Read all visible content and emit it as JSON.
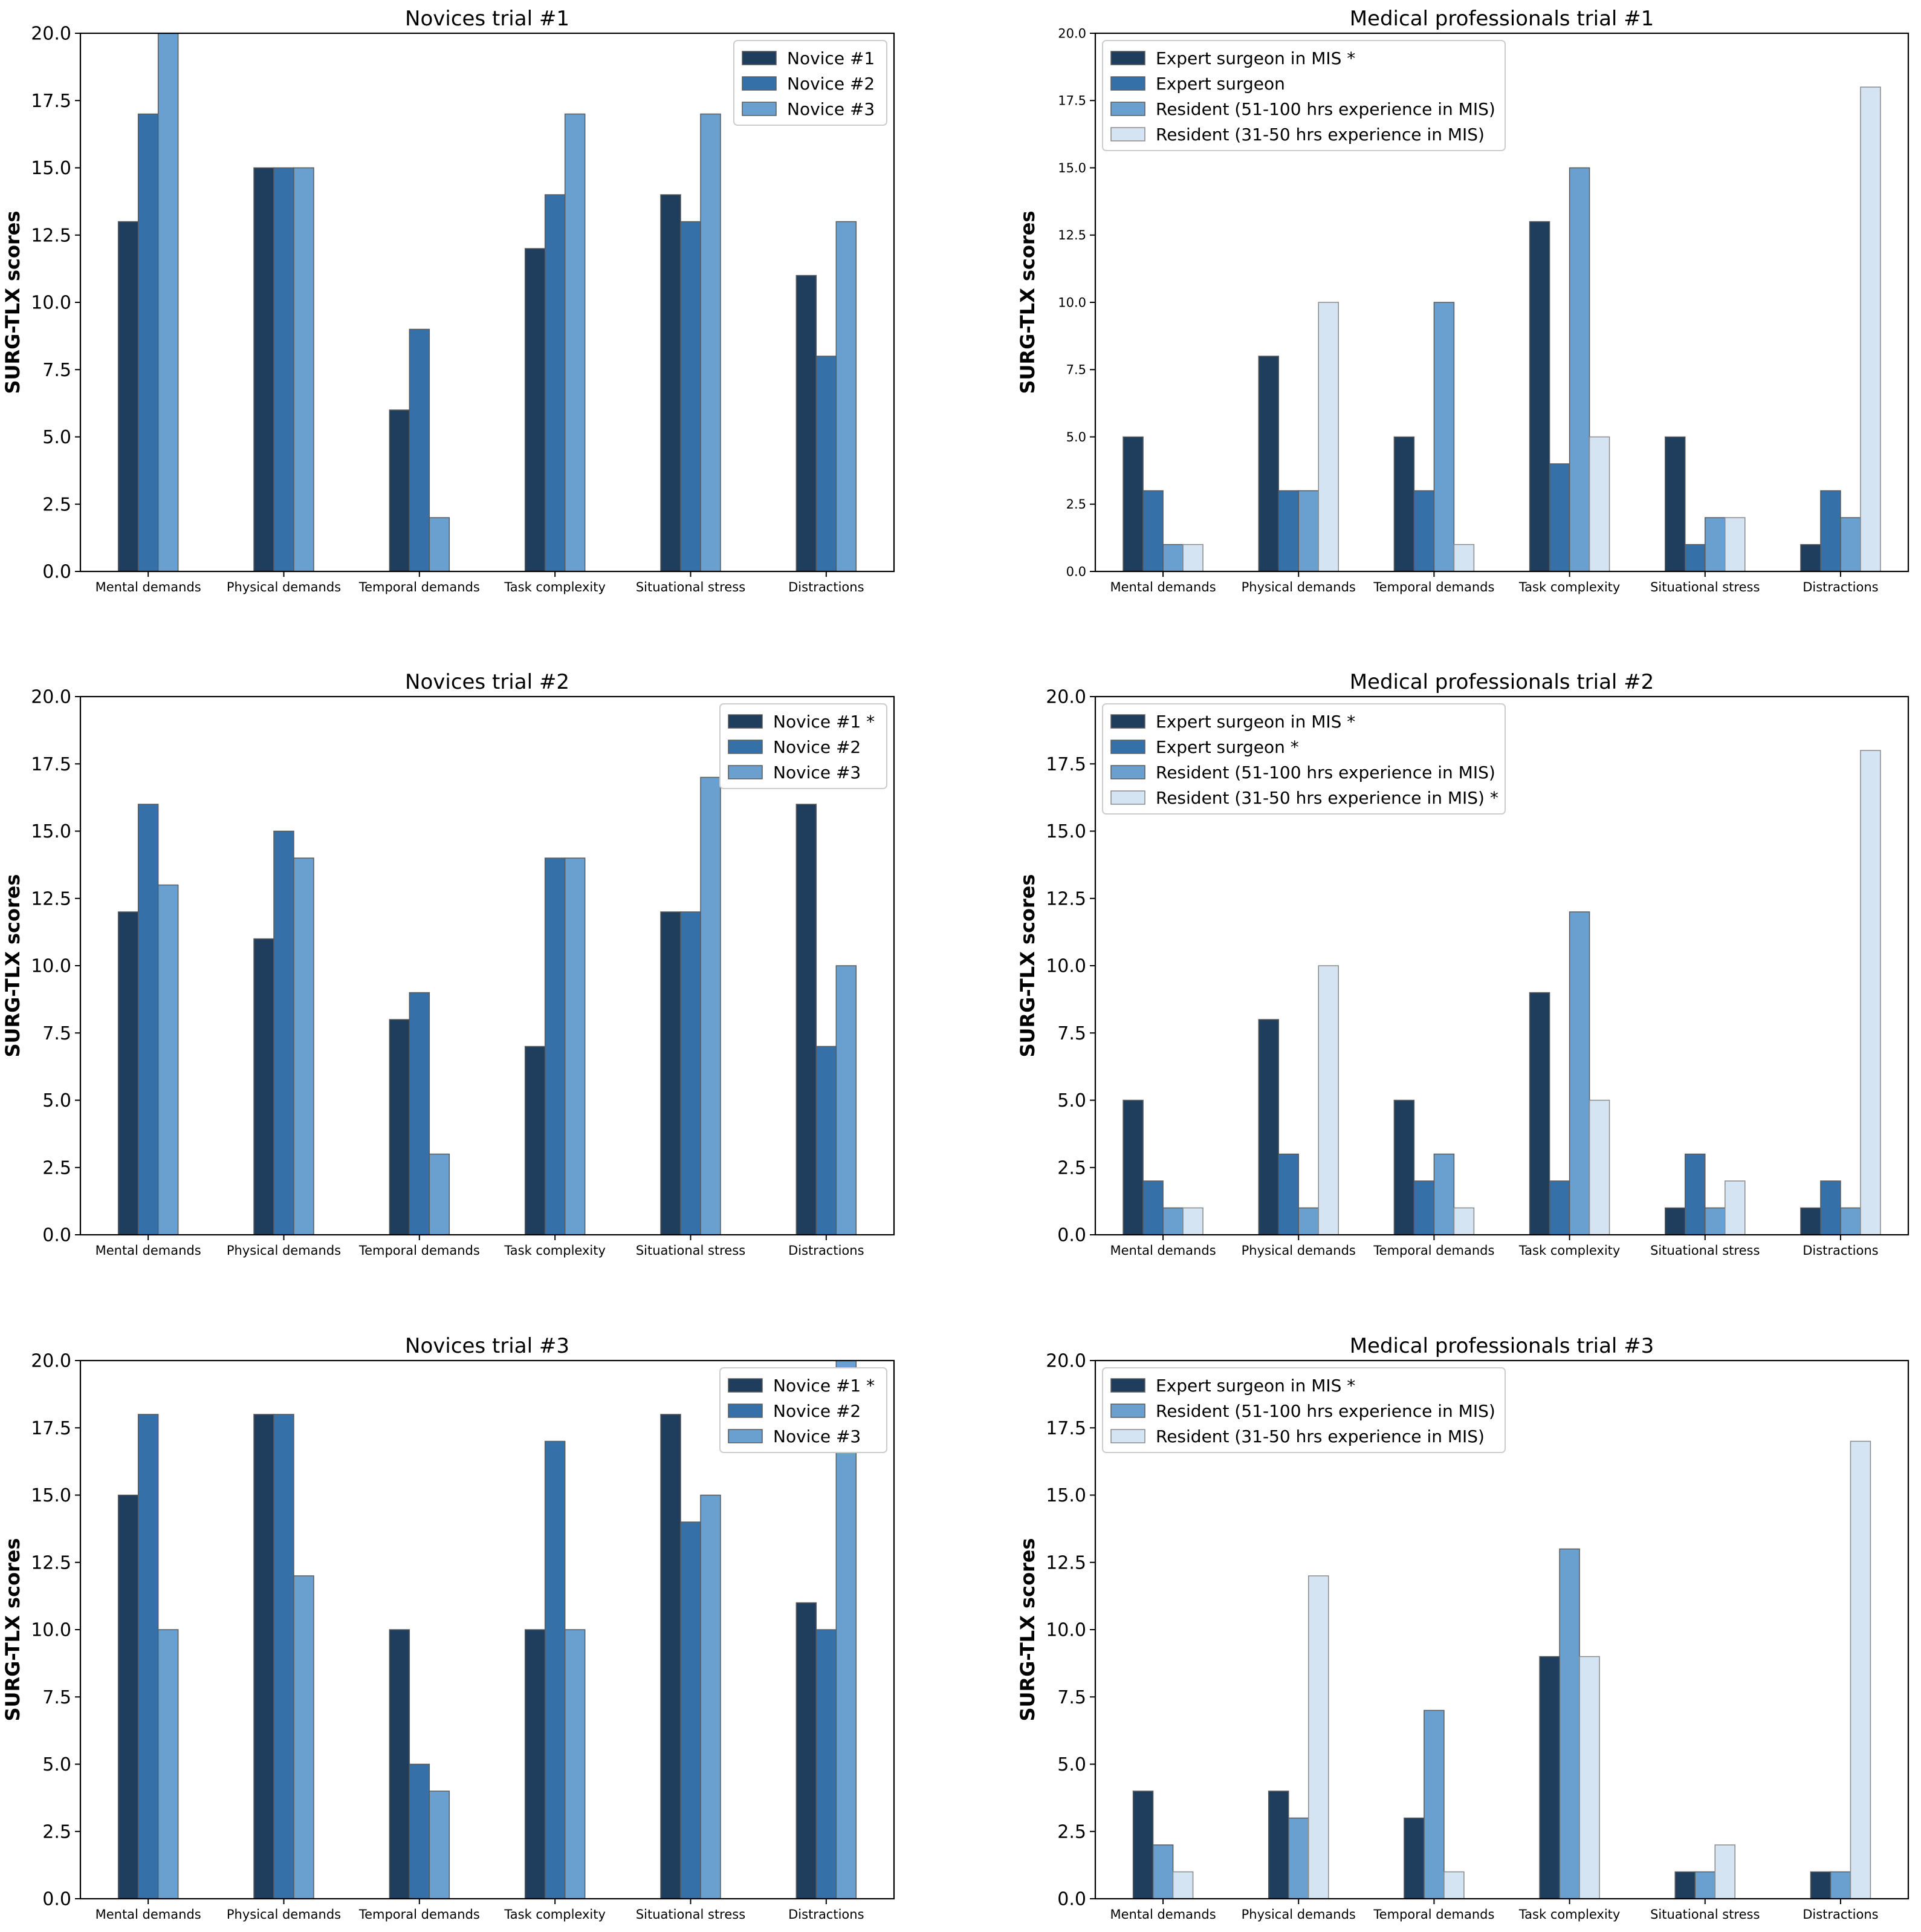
{
  "colors": {
    "s1": "#1f3d5c",
    "s2": "#3570a8",
    "s3": "#6aa0cf",
    "s4": "#d5e4f2",
    "edge_dark": "#5a5a5a",
    "edge_light": "#8a8a8a"
  },
  "chart_data": [
    {
      "type": "bar",
      "title": "Novices trial #1",
      "xlabel": "",
      "ylabel": "SURG-TLX scores",
      "ylim": [
        0,
        20
      ],
      "yticks": [
        "0.0",
        "2.5",
        "5.0",
        "7.5",
        "10.0",
        "12.5",
        "15.0",
        "17.5",
        "20.0"
      ],
      "legend_position": "top-right",
      "categories": [
        "Mental demands",
        "Physical demands",
        "Temporal demands",
        "Task complexity",
        "Situational stress",
        "Distractions"
      ],
      "series": [
        {
          "name": "Novice #1",
          "color_key": "s1",
          "values": [
            13,
            15,
            6,
            12,
            14,
            11
          ]
        },
        {
          "name": "Novice #2",
          "color_key": "s2",
          "values": [
            17,
            15,
            9,
            14,
            13,
            8
          ]
        },
        {
          "name": "Novice #3",
          "color_key": "s3",
          "values": [
            20,
            15,
            2,
            17,
            17,
            13
          ]
        }
      ]
    },
    {
      "type": "bar",
      "title": "Medical professionals trial #1",
      "xlabel": "",
      "ylabel": "SURG-TLX scores",
      "ylim": [
        0,
        20
      ],
      "yticks": [
        "0.0",
        "2.5",
        "5.0",
        "7.5",
        "10.0",
        "12.5",
        "15.0",
        "17.5",
        "20.0"
      ],
      "legend_position": "top-left",
      "categories": [
        "Mental demands",
        "Physical demands",
        "Temporal demands",
        "Task complexity",
        "Situational stress",
        "Distractions"
      ],
      "series": [
        {
          "name": "Expert surgeon in MIS *",
          "color_key": "s1",
          "values": [
            5,
            8,
            5,
            13,
            5,
            1
          ]
        },
        {
          "name": "Expert surgeon",
          "color_key": "s2",
          "values": [
            3,
            3,
            3,
            4,
            1,
            3
          ]
        },
        {
          "name": "Resident (51-100 hrs experience in MIS)",
          "color_key": "s3",
          "values": [
            1,
            3,
            10,
            15,
            2,
            2
          ]
        },
        {
          "name": "Resident (31-50 hrs experience in MIS)",
          "color_key": "s4",
          "values": [
            1,
            10,
            1,
            5,
            2,
            18
          ]
        }
      ]
    },
    {
      "type": "bar",
      "title": "Novices trial #2",
      "xlabel": "",
      "ylabel": "SURG-TLX scores",
      "ylim": [
        0,
        20
      ],
      "yticks": [
        "0.0",
        "2.5",
        "5.0",
        "7.5",
        "10.0",
        "12.5",
        "15.0",
        "17.5",
        "20.0"
      ],
      "legend_position": "top-right",
      "categories": [
        "Mental demands",
        "Physical demands",
        "Temporal demands",
        "Task complexity",
        "Situational stress",
        "Distractions"
      ],
      "series": [
        {
          "name": "Novice #1 *",
          "color_key": "s1",
          "values": [
            12,
            11,
            8,
            7,
            12,
            16
          ]
        },
        {
          "name": "Novice #2",
          "color_key": "s2",
          "values": [
            16,
            15,
            9,
            14,
            12,
            7
          ]
        },
        {
          "name": "Novice #3",
          "color_key": "s3",
          "values": [
            13,
            14,
            3,
            14,
            17,
            10
          ]
        }
      ]
    },
    {
      "type": "bar",
      "title": "Medical professionals trial #2",
      "xlabel": "",
      "ylabel": "SURG-TLX scores",
      "ylim": [
        0,
        20
      ],
      "yticks": [
        "0.0",
        "2.5",
        "5.0",
        "7.5",
        "10.0",
        "12.5",
        "15.0",
        "17.5",
        "20.0"
      ],
      "legend_position": "top-left",
      "categories": [
        "Mental demands",
        "Physical demands",
        "Temporal demands",
        "Task complexity",
        "Situational stress",
        "Distractions"
      ],
      "series": [
        {
          "name": "Expert surgeon in MIS *",
          "color_key": "s1",
          "values": [
            5,
            8,
            5,
            9,
            1,
            1
          ]
        },
        {
          "name": "Expert surgeon *",
          "color_key": "s2",
          "values": [
            2,
            3,
            2,
            2,
            3,
            2
          ]
        },
        {
          "name": "Resident (51-100 hrs experience in MIS)",
          "color_key": "s3",
          "values": [
            1,
            1,
            3,
            12,
            1,
            1
          ]
        },
        {
          "name": "Resident (31-50 hrs experience in MIS) *",
          "color_key": "s4",
          "values": [
            1,
            10,
            1,
            5,
            2,
            18
          ]
        }
      ]
    },
    {
      "type": "bar",
      "title": "Novices trial #3",
      "xlabel": "",
      "ylabel": "SURG-TLX scores",
      "ylim": [
        0,
        20
      ],
      "yticks": [
        "0.0",
        "2.5",
        "5.0",
        "7.5",
        "10.0",
        "12.5",
        "15.0",
        "17.5",
        "20.0"
      ],
      "legend_position": "top-right",
      "categories": [
        "Mental demands",
        "Physical demands",
        "Temporal demands",
        "Task complexity",
        "Situational stress",
        "Distractions"
      ],
      "series": [
        {
          "name": "Novice #1 *",
          "color_key": "s1",
          "values": [
            15,
            18,
            10,
            10,
            18,
            11
          ]
        },
        {
          "name": "Novice #2",
          "color_key": "s2",
          "values": [
            18,
            18,
            5,
            17,
            14,
            10
          ]
        },
        {
          "name": "Novice #3",
          "color_key": "s3",
          "values": [
            10,
            12,
            4,
            10,
            15,
            20
          ]
        }
      ]
    },
    {
      "type": "bar",
      "title": "Medical professionals trial #3",
      "xlabel": "",
      "ylabel": "SURG-TLX scores",
      "ylim": [
        0,
        20
      ],
      "yticks": [
        "0.0",
        "2.5",
        "5.0",
        "7.5",
        "10.0",
        "12.5",
        "15.0",
        "17.5",
        "20.0"
      ],
      "legend_position": "top-left",
      "categories": [
        "Mental demands",
        "Physical demands",
        "Temporal demands",
        "Task complexity",
        "Situational stress",
        "Distractions"
      ],
      "series": [
        {
          "name": "Expert surgeon in MIS *",
          "color_key": "s1",
          "values": [
            4,
            4,
            3,
            9,
            1,
            1
          ]
        },
        {
          "name": "Resident (51-100 hrs experience in MIS)",
          "color_key": "s3",
          "values": [
            2,
            3,
            7,
            13,
            1,
            1
          ]
        },
        {
          "name": "Resident (31-50 hrs experience in MIS)",
          "color_key": "s4",
          "values": [
            1,
            12,
            1,
            9,
            2,
            17
          ]
        }
      ]
    }
  ]
}
